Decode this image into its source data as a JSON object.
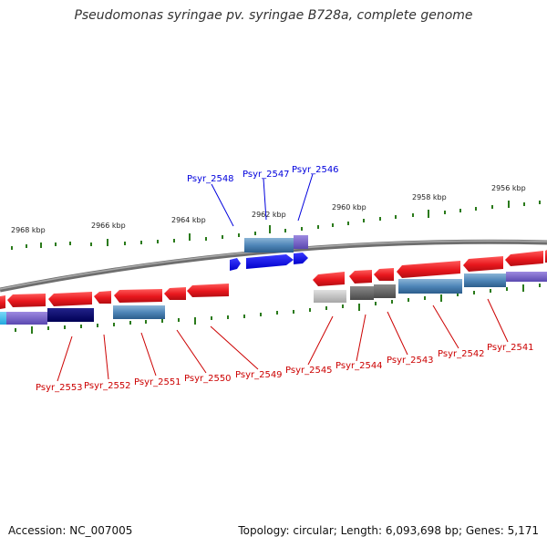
{
  "title": "Pseudomonas syringae pv. syringae B728a, complete genome",
  "accession_text": "Accession: NC_007005",
  "topology_text": "Topology: circular; Length: 6,093,698 bp; Genes: 5,171",
  "colors": {
    "forward_gene": "#e8171d",
    "reverse_gene_label": "#cc0000",
    "forward_label": "#0000dd",
    "blue_gene": "#0a0aee",
    "tick": "#2a7a1a",
    "backbone": "#777777"
  },
  "kbp_ticks": [
    {
      "label": "2956 kbp"
    },
    {
      "label": "2958 kbp"
    },
    {
      "label": "2960 kbp"
    },
    {
      "label": "2962 kbp"
    },
    {
      "label": "2964 kbp"
    },
    {
      "label": "2966 kbp"
    },
    {
      "label": "2968 kbp"
    }
  ],
  "upper_labels": [
    "Psyr_2548",
    "Psyr_2547",
    "Psyr_2546"
  ],
  "lower_labels": [
    "Psyr_2553",
    "Psyr_2552",
    "Psyr_2551",
    "Psyr_2550",
    "Psyr_2549",
    "Psyr_2545",
    "Psyr_2544",
    "Psyr_2543",
    "Psyr_2542",
    "Psyr_2541"
  ]
}
